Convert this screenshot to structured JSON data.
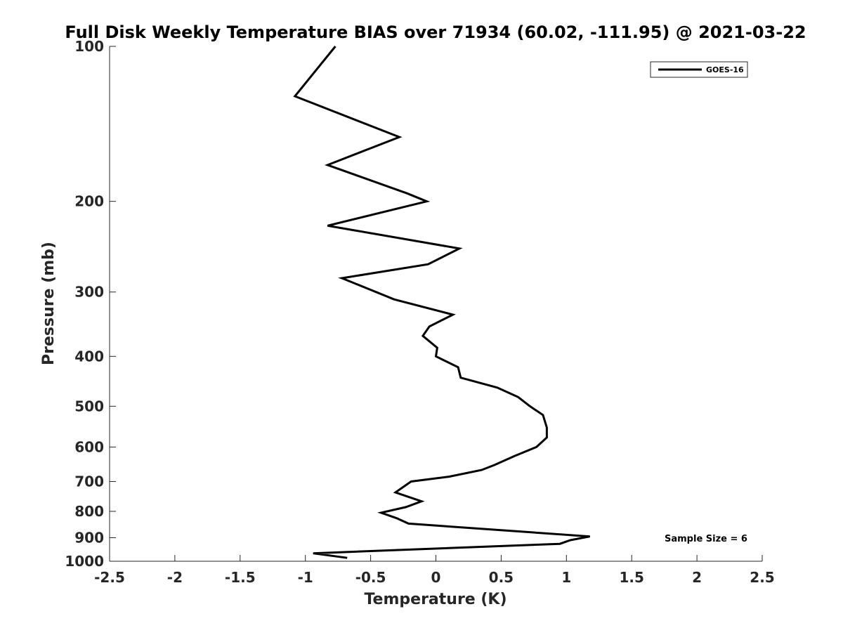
{
  "chart_data": {
    "type": "line",
    "title": "Full Disk Weekly Temperature BIAS over 71934 (60.02, -111.95) @ 2021-03-22",
    "xlabel": "Temperature (K)",
    "ylabel": "Pressure (mb)",
    "xlim": [
      -2.5,
      2.5
    ],
    "ylim": [
      1000,
      100
    ],
    "y_scale": "log",
    "y_reversed": true,
    "x_ticks": [
      "-2.5",
      "-2",
      "-1.5",
      "-1",
      "-0.5",
      "0",
      "0.5",
      "1",
      "1.5",
      "2",
      "2.5"
    ],
    "y_ticks": [
      "100",
      "200",
      "300",
      "400",
      "500",
      "600",
      "700",
      "800",
      "900",
      "1000"
    ],
    "grid": false,
    "legend_position": "top-right",
    "annotation": "Sample Size = 6",
    "series": [
      {
        "name": "GOES-16",
        "color": "#000000",
        "points": [
          {
            "x": -0.77,
            "y": 100
          },
          {
            "x": -1.08,
            "y": 125
          },
          {
            "x": -0.28,
            "y": 150
          },
          {
            "x": -0.83,
            "y": 170
          },
          {
            "x": -0.22,
            "y": 193
          },
          {
            "x": -0.07,
            "y": 200
          },
          {
            "x": -0.83,
            "y": 223
          },
          {
            "x": 0.18,
            "y": 247
          },
          {
            "x": -0.06,
            "y": 265
          },
          {
            "x": -0.72,
            "y": 282
          },
          {
            "x": -0.32,
            "y": 310
          },
          {
            "x": 0.13,
            "y": 332
          },
          {
            "x": -0.05,
            "y": 350
          },
          {
            "x": -0.1,
            "y": 365
          },
          {
            "x": 0.01,
            "y": 385
          },
          {
            "x": 0.0,
            "y": 400
          },
          {
            "x": 0.17,
            "y": 420
          },
          {
            "x": 0.19,
            "y": 440
          },
          {
            "x": 0.47,
            "y": 460
          },
          {
            "x": 0.63,
            "y": 480
          },
          {
            "x": 0.72,
            "y": 500
          },
          {
            "x": 0.82,
            "y": 520
          },
          {
            "x": 0.85,
            "y": 550
          },
          {
            "x": 0.85,
            "y": 575
          },
          {
            "x": 0.77,
            "y": 600
          },
          {
            "x": 0.6,
            "y": 625
          },
          {
            "x": 0.45,
            "y": 650
          },
          {
            "x": 0.35,
            "y": 665
          },
          {
            "x": 0.1,
            "y": 685
          },
          {
            "x": -0.19,
            "y": 700
          },
          {
            "x": -0.31,
            "y": 735
          },
          {
            "x": -0.11,
            "y": 765
          },
          {
            "x": -0.23,
            "y": 785
          },
          {
            "x": -0.42,
            "y": 805
          },
          {
            "x": -0.3,
            "y": 825
          },
          {
            "x": -0.21,
            "y": 845
          },
          {
            "x": 1.18,
            "y": 895
          },
          {
            "x": 1.03,
            "y": 910
          },
          {
            "x": 0.95,
            "y": 925
          },
          {
            "x": -0.94,
            "y": 965
          },
          {
            "x": -0.68,
            "y": 985
          }
        ]
      }
    ]
  }
}
